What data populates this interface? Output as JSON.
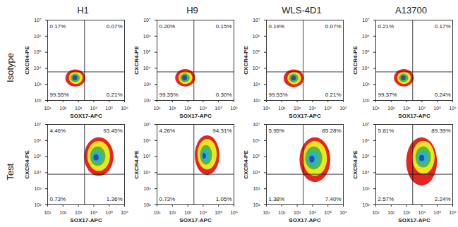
{
  "column_titles": [
    "H1",
    "H9",
    "WLS-4D1",
    "A13700"
  ],
  "row_labels": [
    "Isotype",
    "Test"
  ],
  "chart_data": [
    {
      "type": "density",
      "x_label": "SOX17-APC",
      "y_label": "CXCR4-PE",
      "log": true,
      "xlim": [
        10,
        1000000
      ],
      "ylim": [
        100,
        10000000
      ],
      "xticks": [
        {
          "value": 10,
          "label": "10¹"
        },
        {
          "value": 100,
          "label": "10²"
        },
        {
          "value": 1000,
          "label": "10³"
        },
        {
          "value": 10000,
          "label": "10⁴"
        },
        {
          "value": 100000,
          "label": "10⁵"
        },
        {
          "value": 1000000,
          "label": "10⁶"
        }
      ],
      "yticks": [
        {
          "value": 100,
          "label": "10²"
        },
        {
          "value": 1000,
          "label": "10³"
        },
        {
          "value": 10000,
          "label": "10⁴"
        },
        {
          "value": 100000,
          "label": "10⁵"
        },
        {
          "value": 1000000,
          "label": "10⁶"
        },
        {
          "value": 10000000,
          "label": "10⁷"
        }
      ],
      "gate": {
        "x": 2500,
        "y": 6000
      },
      "quadrant_values": [
        0.17,
        0.07,
        99.55,
        0.21
      ],
      "quadrant_labels": [
        "0.17%",
        "0.07%",
        "99.55%",
        "0.21%"
      ],
      "density": [
        {
          "color": "#e3261f",
          "x": [
            150,
            3000
          ],
          "y": [
            700,
            8000
          ]
        },
        {
          "color": "#f2e41c",
          "x": [
            250,
            2000
          ],
          "y": [
            1000,
            6000
          ]
        },
        {
          "color": "#55b947",
          "x": [
            330,
            1300
          ],
          "y": [
            1300,
            4500
          ]
        },
        {
          "color": "#2b4ea6",
          "x": [
            430,
            900
          ],
          "y": [
            1700,
            3500
          ]
        }
      ]
    },
    {
      "type": "density",
      "x_label": "SOX17-APC",
      "y_label": "CXCR4-PE",
      "log": true,
      "xlim": [
        10,
        1000000
      ],
      "ylim": [
        100,
        10000000
      ],
      "xticks": [
        {
          "value": 10,
          "label": "10¹"
        },
        {
          "value": 100,
          "label": "10²"
        },
        {
          "value": 1000,
          "label": "10³"
        },
        {
          "value": 10000,
          "label": "10⁴"
        },
        {
          "value": 100000,
          "label": "10⁵"
        },
        {
          "value": 1000000,
          "label": "10⁶"
        }
      ],
      "yticks": [
        {
          "value": 100,
          "label": "10²"
        },
        {
          "value": 1000,
          "label": "10³"
        },
        {
          "value": 10000,
          "label": "10⁴"
        },
        {
          "value": 100000,
          "label": "10⁵"
        },
        {
          "value": 1000000,
          "label": "10⁶"
        },
        {
          "value": 10000000,
          "label": "10⁷"
        }
      ],
      "gate": {
        "x": 2500,
        "y": 6000
      },
      "quadrant_values": [
        0.2,
        0.15,
        99.35,
        0.3
      ],
      "quadrant_labels": [
        "0.20%",
        "0.15%",
        "99.35%",
        "0.30%"
      ],
      "density": [
        {
          "color": "#e3261f",
          "x": [
            160,
            3200
          ],
          "y": [
            700,
            8500
          ]
        },
        {
          "color": "#f2e41c",
          "x": [
            260,
            2100
          ],
          "y": [
            1000,
            6200
          ]
        },
        {
          "color": "#55b947",
          "x": [
            340,
            1400
          ],
          "y": [
            1300,
            4600
          ]
        },
        {
          "color": "#2b4ea6",
          "x": [
            450,
            950
          ],
          "y": [
            1700,
            3600
          ]
        }
      ]
    },
    {
      "type": "density",
      "x_label": "SOX17-APC",
      "y_label": "CXCR4-PE",
      "log": true,
      "xlim": [
        10,
        1000000
      ],
      "ylim": [
        100,
        10000000
      ],
      "xticks": [
        {
          "value": 10,
          "label": "10¹"
        },
        {
          "value": 100,
          "label": "10²"
        },
        {
          "value": 1000,
          "label": "10³"
        },
        {
          "value": 10000,
          "label": "10⁴"
        },
        {
          "value": 100000,
          "label": "10⁵"
        },
        {
          "value": 1000000,
          "label": "10⁶"
        }
      ],
      "yticks": [
        {
          "value": 100,
          "label": "10²"
        },
        {
          "value": 1000,
          "label": "10³"
        },
        {
          "value": 10000,
          "label": "10⁴"
        },
        {
          "value": 100000,
          "label": "10⁵"
        },
        {
          "value": 1000000,
          "label": "10⁶"
        },
        {
          "value": 10000000,
          "label": "10⁷"
        }
      ],
      "gate": {
        "x": 2500,
        "y": 6000
      },
      "quadrant_values": [
        0.19,
        0.07,
        99.53,
        0.21
      ],
      "quadrant_labels": [
        "0.19%",
        "0.07%",
        "99.53%",
        "0.21%"
      ],
      "density": [
        {
          "color": "#e3261f",
          "x": [
            140,
            2900
          ],
          "y": [
            650,
            8000
          ]
        },
        {
          "color": "#f2e41c",
          "x": [
            240,
            1900
          ],
          "y": [
            950,
            5800
          ]
        },
        {
          "color": "#55b947",
          "x": [
            320,
            1250
          ],
          "y": [
            1250,
            4400
          ]
        },
        {
          "color": "#2b4ea6",
          "x": [
            420,
            880
          ],
          "y": [
            1650,
            3400
          ]
        }
      ]
    },
    {
      "type": "density",
      "x_label": "SOX17-APC",
      "y_label": "CXCR4-PE",
      "log": true,
      "xlim": [
        10,
        1000000
      ],
      "ylim": [
        100,
        10000000
      ],
      "xticks": [
        {
          "value": 10,
          "label": "10¹"
        },
        {
          "value": 100,
          "label": "10²"
        },
        {
          "value": 1000,
          "label": "10³"
        },
        {
          "value": 10000,
          "label": "10⁴"
        },
        {
          "value": 100000,
          "label": "10⁵"
        },
        {
          "value": 1000000,
          "label": "10⁶"
        }
      ],
      "yticks": [
        {
          "value": 100,
          "label": "10²"
        },
        {
          "value": 1000,
          "label": "10³"
        },
        {
          "value": 10000,
          "label": "10⁴"
        },
        {
          "value": 100000,
          "label": "10⁵"
        },
        {
          "value": 1000000,
          "label": "10⁶"
        },
        {
          "value": 10000000,
          "label": "10⁷"
        }
      ],
      "gate": {
        "x": 2500,
        "y": 6000
      },
      "quadrant_values": [
        0.21,
        0.17,
        99.37,
        0.24
      ],
      "quadrant_labels": [
        "0.21%",
        "0.17%",
        "99.37%",
        "0.24%"
      ],
      "density": [
        {
          "color": "#e3261f",
          "x": [
            160,
            3100
          ],
          "y": [
            700,
            8500
          ]
        },
        {
          "color": "#f2e41c",
          "x": [
            260,
            2000
          ],
          "y": [
            1000,
            6000
          ]
        },
        {
          "color": "#55b947",
          "x": [
            340,
            1350
          ],
          "y": [
            1300,
            4500
          ]
        },
        {
          "color": "#2b4ea6",
          "x": [
            440,
            920
          ],
          "y": [
            1700,
            3500
          ]
        }
      ]
    },
    {
      "type": "density",
      "x_label": "SOX17-APC",
      "y_label": "CXCR4-PE",
      "log": true,
      "xlim": [
        10,
        1000000
      ],
      "ylim": [
        100,
        10000000
      ],
      "xticks": [
        {
          "value": 10,
          "label": "10¹"
        },
        {
          "value": 100,
          "label": "10²"
        },
        {
          "value": 1000,
          "label": "10³"
        },
        {
          "value": 10000,
          "label": "10⁴"
        },
        {
          "value": 100000,
          "label": "10⁵"
        },
        {
          "value": 1000000,
          "label": "10⁶"
        }
      ],
      "yticks": [
        {
          "value": 100,
          "label": "10²"
        },
        {
          "value": 1000,
          "label": "10³"
        },
        {
          "value": 10000,
          "label": "10⁴"
        },
        {
          "value": 100000,
          "label": "10⁵"
        },
        {
          "value": 1000000,
          "label": "10⁶"
        },
        {
          "value": 10000000,
          "label": "10⁷"
        }
      ],
      "gate": {
        "x": 2500,
        "y": 8000
      },
      "quadrant_values": [
        4.46,
        93.45,
        0.73,
        1.36
      ],
      "quadrant_labels": [
        "4.46%",
        "93.45%",
        "0.73%",
        "1.36%"
      ],
      "density": [
        {
          "color": "#e3261f",
          "x": [
            2500,
            200000
          ],
          "y": [
            6000,
            1500000
          ]
        },
        {
          "color": "#f2e41c",
          "x": [
            4000,
            120000
          ],
          "y": [
            12000,
            900000
          ]
        },
        {
          "color": "#55b947",
          "x": [
            6000,
            60000
          ],
          "y": [
            25000,
            400000
          ]
        },
        {
          "color": "#27b3c8",
          "x": [
            8000,
            35000
          ],
          "y": [
            40000,
            200000
          ]
        },
        {
          "color": "#2b4ea6",
          "x": [
            10000,
            22000
          ],
          "y": [
            55000,
            130000
          ]
        }
      ]
    },
    {
      "type": "density",
      "x_label": "SOX17-APC",
      "y_label": "CXCR4-PE",
      "log": true,
      "xlim": [
        10,
        1000000
      ],
      "ylim": [
        100,
        10000000
      ],
      "xticks": [
        {
          "value": 10,
          "label": "10¹"
        },
        {
          "value": 100,
          "label": "10²"
        },
        {
          "value": 1000,
          "label": "10³"
        },
        {
          "value": 10000,
          "label": "10⁴"
        },
        {
          "value": 100000,
          "label": "10⁵"
        },
        {
          "value": 1000000,
          "label": "10⁶"
        }
      ],
      "yticks": [
        {
          "value": 100,
          "label": "10²"
        },
        {
          "value": 1000,
          "label": "10³"
        },
        {
          "value": 10000,
          "label": "10⁴"
        },
        {
          "value": 100000,
          "label": "10⁵"
        },
        {
          "value": 1000000,
          "label": "10⁶"
        },
        {
          "value": 10000000,
          "label": "10⁷"
        }
      ],
      "gate": {
        "x": 2500,
        "y": 8000
      },
      "quadrant_values": [
        4.26,
        94.31,
        0.73,
        1.05
      ],
      "quadrant_labels": [
        "4.26%",
        "94.31%",
        "0.73%",
        "1.05%"
      ],
      "density": [
        {
          "color": "#e3261f",
          "x": [
            3000,
            120000
          ],
          "y": [
            7000,
            2000000
          ]
        },
        {
          "color": "#f2e41c",
          "x": [
            4500,
            80000
          ],
          "y": [
            15000,
            1200000
          ]
        },
        {
          "color": "#55b947",
          "x": [
            6500,
            40000
          ],
          "y": [
            30000,
            500000
          ]
        },
        {
          "color": "#27b3c8",
          "x": [
            8000,
            25000
          ],
          "y": [
            50000,
            250000
          ]
        },
        {
          "color": "#2b4ea6",
          "x": [
            9500,
            16000
          ],
          "y": [
            70000,
            160000
          ]
        }
      ]
    },
    {
      "type": "density",
      "x_label": "SOX17-APC",
      "y_label": "CXCR4-PE",
      "log": true,
      "xlim": [
        10,
        1000000
      ],
      "ylim": [
        100,
        10000000
      ],
      "xticks": [
        {
          "value": 10,
          "label": "10¹"
        },
        {
          "value": 100,
          "label": "10²"
        },
        {
          "value": 1000,
          "label": "10³"
        },
        {
          "value": 10000,
          "label": "10⁴"
        },
        {
          "value": 100000,
          "label": "10⁵"
        },
        {
          "value": 1000000,
          "label": "10⁶"
        }
      ],
      "yticks": [
        {
          "value": 100,
          "label": "10²"
        },
        {
          "value": 1000,
          "label": "10³"
        },
        {
          "value": 10000,
          "label": "10⁴"
        },
        {
          "value": 100000,
          "label": "10⁵"
        },
        {
          "value": 1000000,
          "label": "10⁶"
        },
        {
          "value": 10000000,
          "label": "10⁷"
        }
      ],
      "gate": {
        "x": 2500,
        "y": 8000
      },
      "quadrant_values": [
        5.95,
        85.28,
        1.38,
        7.4
      ],
      "quadrant_labels": [
        "5.95%",
        "85.28%",
        "1.38%",
        "7.40%"
      ],
      "density": [
        {
          "color": "#e3261f",
          "x": [
            1500,
            150000
          ],
          "y": [
            2500,
            1500000
          ]
        },
        {
          "color": "#f2e41c",
          "x": [
            2500,
            90000
          ],
          "y": [
            6000,
            900000
          ]
        },
        {
          "color": "#55b947",
          "x": [
            3500,
            45000
          ],
          "y": [
            15000,
            400000
          ]
        },
        {
          "color": "#27b3c8",
          "x": [
            5000,
            25000
          ],
          "y": [
            25000,
            200000
          ]
        },
        {
          "color": "#2b4ea6",
          "x": [
            6500,
            14000
          ],
          "y": [
            40000,
            110000
          ]
        }
      ]
    },
    {
      "type": "density",
      "x_label": "SOX17-APC",
      "y_label": "CXCR4-PE",
      "log": true,
      "xlim": [
        10,
        1000000
      ],
      "ylim": [
        100,
        10000000
      ],
      "xticks": [
        {
          "value": 10,
          "label": "10¹"
        },
        {
          "value": 100,
          "label": "10²"
        },
        {
          "value": 1000,
          "label": "10³"
        },
        {
          "value": 10000,
          "label": "10⁴"
        },
        {
          "value": 100000,
          "label": "10⁵"
        },
        {
          "value": 1000000,
          "label": "10⁶"
        }
      ],
      "yticks": [
        {
          "value": 100,
          "label": "10²"
        },
        {
          "value": 1000,
          "label": "10³"
        },
        {
          "value": 10000,
          "label": "10⁴"
        },
        {
          "value": 100000,
          "label": "10⁵"
        },
        {
          "value": 1000000,
          "label": "10⁶"
        },
        {
          "value": 10000000,
          "label": "10⁷"
        }
      ],
      "gate": {
        "x": 2500,
        "y": 8000
      },
      "quadrant_values": [
        5.81,
        89.39,
        2.57,
        2.24
      ],
      "quadrant_labels": [
        "5.81%",
        "89.39%",
        "2.57%",
        "2.24%"
      ],
      "density": [
        {
          "color": "#e3261f",
          "x": [
            1000,
            100000
          ],
          "y": [
            1500,
            1500000
          ]
        },
        {
          "color": "#f2e41c",
          "x": [
            2500,
            70000
          ],
          "y": [
            8000,
            900000
          ]
        },
        {
          "color": "#55b947",
          "x": [
            4000,
            40000
          ],
          "y": [
            20000,
            400000
          ]
        },
        {
          "color": "#27b3c8",
          "x": [
            5500,
            25000
          ],
          "y": [
            35000,
            200000
          ]
        },
        {
          "color": "#2b4ea6",
          "x": [
            7000,
            15000
          ],
          "y": [
            50000,
            120000
          ]
        }
      ]
    }
  ]
}
